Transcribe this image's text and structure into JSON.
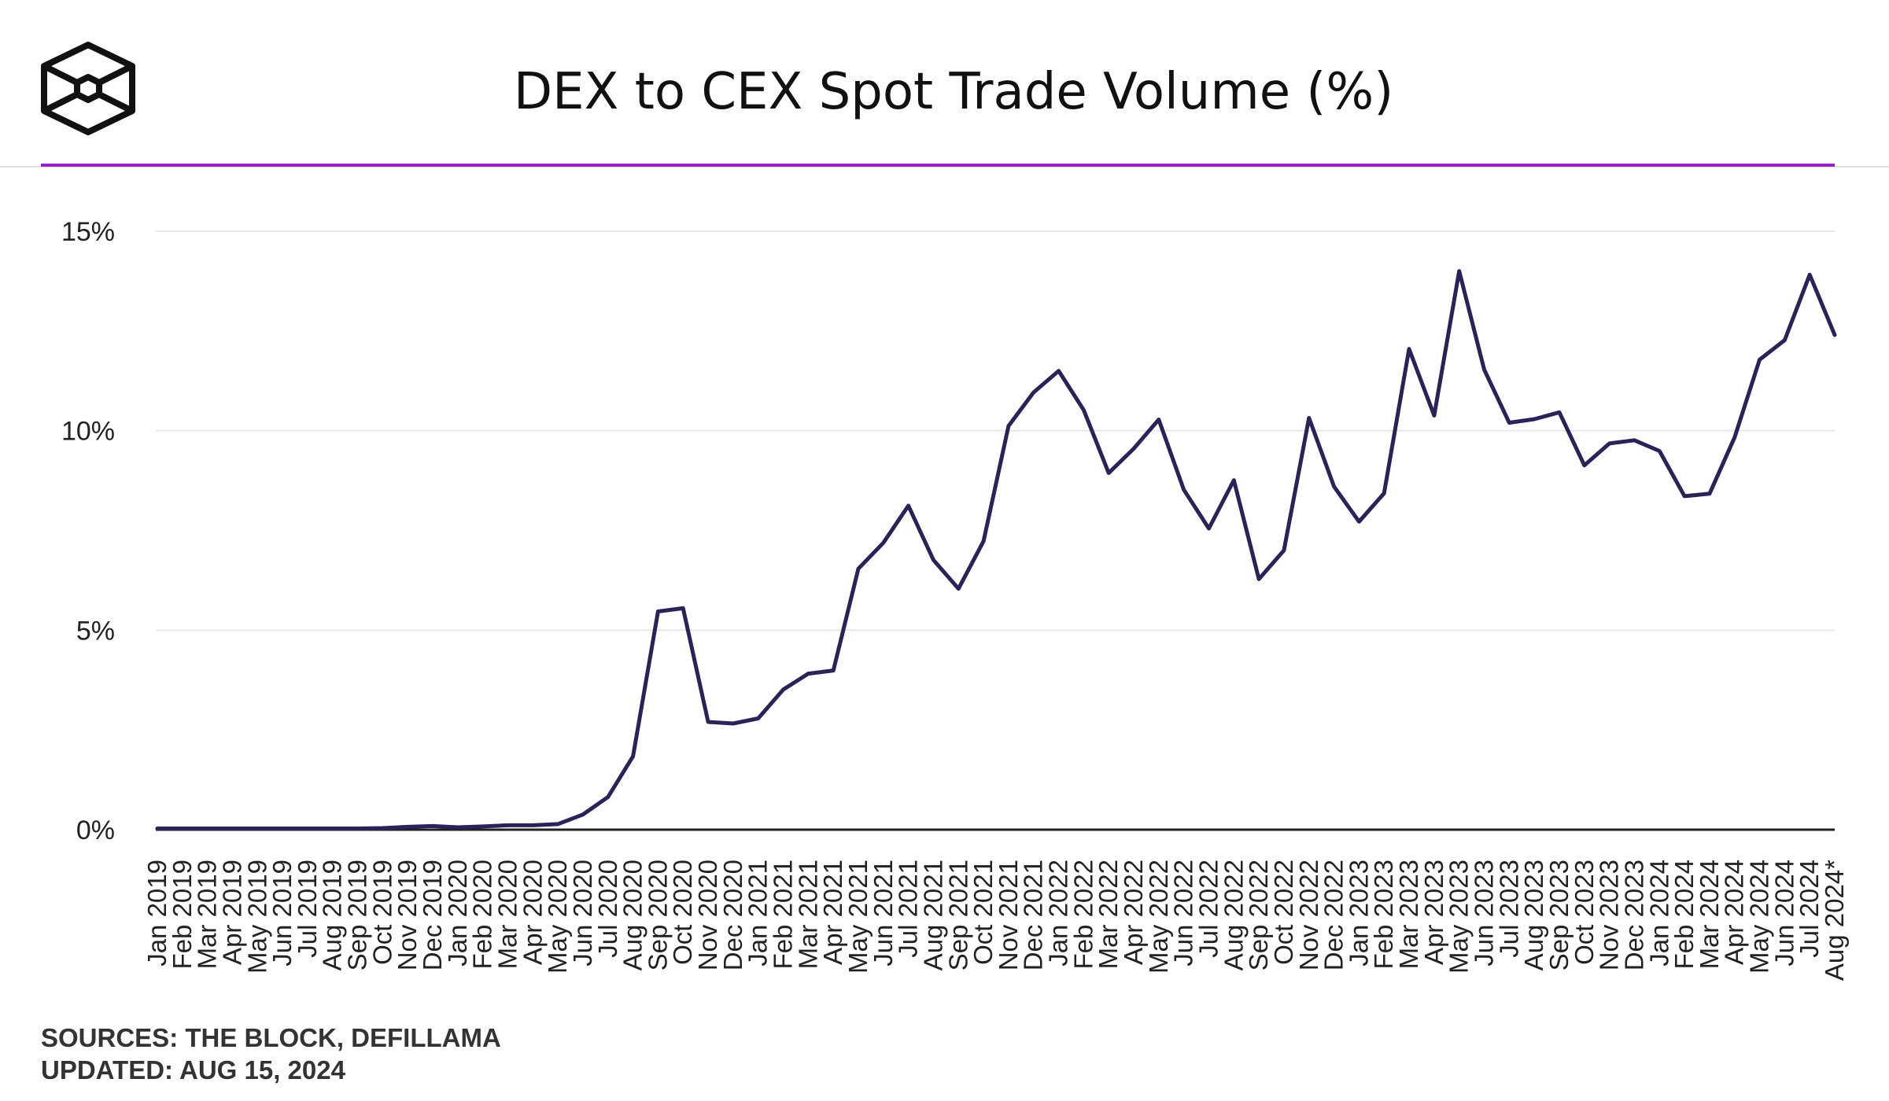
{
  "header": {
    "title": "DEX to CEX Spot Trade Volume (%)",
    "logo_icon": "the-block-cube-icon",
    "accent_color": "#9b1fc8"
  },
  "footer": {
    "sources": "SOURCES: THE BLOCK, DEFILLAMA",
    "updated": "UPDATED: AUG 15, 2024"
  },
  "chart_data": {
    "type": "line",
    "title": "DEX to CEX Spot Trade Volume (%)",
    "xlabel": "",
    "ylabel": "",
    "y_unit": "%",
    "ylim": [
      0,
      15
    ],
    "y_ticks": [
      0,
      5,
      10,
      15
    ],
    "y_tick_labels": [
      "0%",
      "5%",
      "10%",
      "15%"
    ],
    "grid": true,
    "line_color": "#2b2257",
    "categories": [
      "Jan 2019",
      "Feb 2019",
      "Mar 2019",
      "Apr 2019",
      "May 2019",
      "Jun 2019",
      "Jul 2019",
      "Aug 2019",
      "Sep 2019",
      "Oct 2019",
      "Nov 2019",
      "Dec 2019",
      "Jan 2020",
      "Feb 2020",
      "Mar 2020",
      "Apr 2020",
      "May 2020",
      "Jun 2020",
      "Jul 2020",
      "Aug 2020",
      "Sep 2020",
      "Oct 2020",
      "Nov 2020",
      "Dec 2020",
      "Jan 2021",
      "Feb 2021",
      "Mar 2021",
      "Apr 2021",
      "May 2021",
      "Jun 2021",
      "Jul 2021",
      "Aug 2021",
      "Sep 2021",
      "Oct 2021",
      "Nov 2021",
      "Dec 2021",
      "Jan 2022",
      "Feb 2022",
      "Mar 2022",
      "Apr 2022",
      "May 2022",
      "Jun 2022",
      "Jul 2022",
      "Aug 2022",
      "Sep 2022",
      "Oct 2022",
      "Nov 2022",
      "Dec 2022",
      "Jan 2023",
      "Feb 2023",
      "Mar 2023",
      "Apr 2023",
      "May 2023",
      "Jun 2023",
      "Jul 2023",
      "Aug 2023",
      "Sep 2023",
      "Oct 2023",
      "Nov 2023",
      "Dec 2023",
      "Jan 2024",
      "Feb 2024",
      "Mar 2024",
      "Apr 2024",
      "May 2024",
      "Jun 2024",
      "Jul 2024",
      "Aug 2024*"
    ],
    "series": [
      {
        "values": [
          0.03,
          0.03,
          0.03,
          0.03,
          0.03,
          0.03,
          0.03,
          0.03,
          0.03,
          0.04,
          0.07,
          0.09,
          0.06,
          0.08,
          0.11,
          0.11,
          0.14,
          0.38,
          0.82,
          1.84,
          5.47,
          5.55,
          2.7,
          2.66,
          2.79,
          3.51,
          3.91,
          3.99,
          6.54,
          7.19,
          8.12,
          6.76,
          6.04,
          7.23,
          10.12,
          10.96,
          11.5,
          10.52,
          8.94,
          9.55,
          10.28,
          8.52,
          7.55,
          8.76,
          6.28,
          7.0,
          10.32,
          8.6,
          7.72,
          8.43,
          12.05,
          10.38,
          14.0,
          11.53,
          10.2,
          10.29,
          10.46,
          9.13,
          9.68,
          9.76,
          9.49,
          8.36,
          8.42,
          9.83,
          11.78,
          12.27,
          13.91,
          12.4
        ]
      }
    ]
  }
}
